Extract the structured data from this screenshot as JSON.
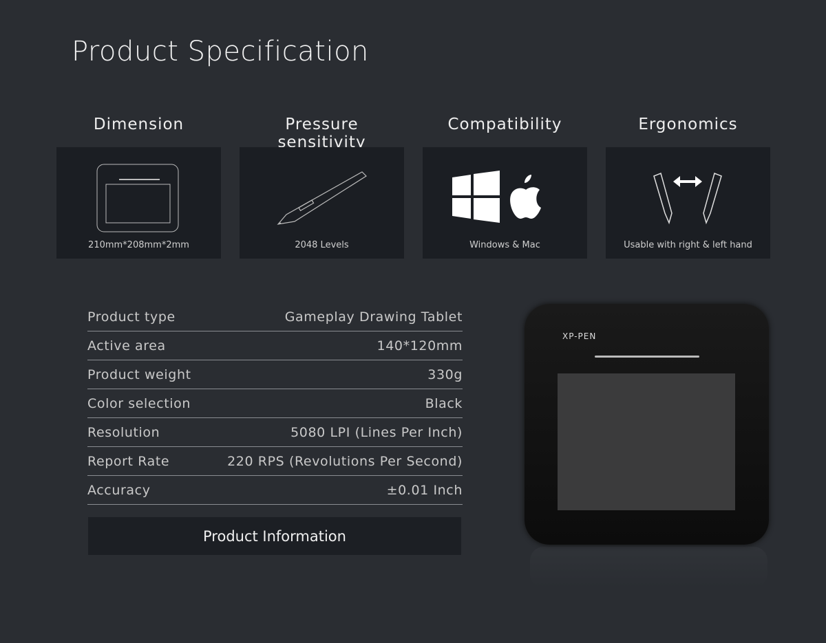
{
  "title": "Product Specification",
  "features": [
    {
      "heading": "Dimension",
      "caption": "210mm*208mm*2mm",
      "icon": "tablet-outline-icon"
    },
    {
      "heading": "Pressure sensitivity",
      "caption": "2048 Levels",
      "icon": "pen-icon"
    },
    {
      "heading": "Compatibility",
      "caption": "Windows & Mac",
      "icon": "windows-apple-icon"
    },
    {
      "heading": "Ergonomics",
      "caption": "Usable with right & left hand",
      "icon": "two-pens-arrows-icon"
    }
  ],
  "specs": [
    {
      "label": "Product type",
      "value": "Gameplay Drawing Tablet"
    },
    {
      "label": "Active area",
      "value": "140*120mm"
    },
    {
      "label": "Product weight",
      "value": "330g"
    },
    {
      "label": "Color selection",
      "value": "Black"
    },
    {
      "label": "Resolution",
      "value": "5080 LPI (Lines Per Inch)"
    },
    {
      "label": "Report Rate",
      "value": "220 RPS (Revolutions Per Second)"
    },
    {
      "label": "Accuracy",
      "value": "±0.01 Inch"
    }
  ],
  "button": "Product Information",
  "product": {
    "brand": "XP-PEN"
  }
}
